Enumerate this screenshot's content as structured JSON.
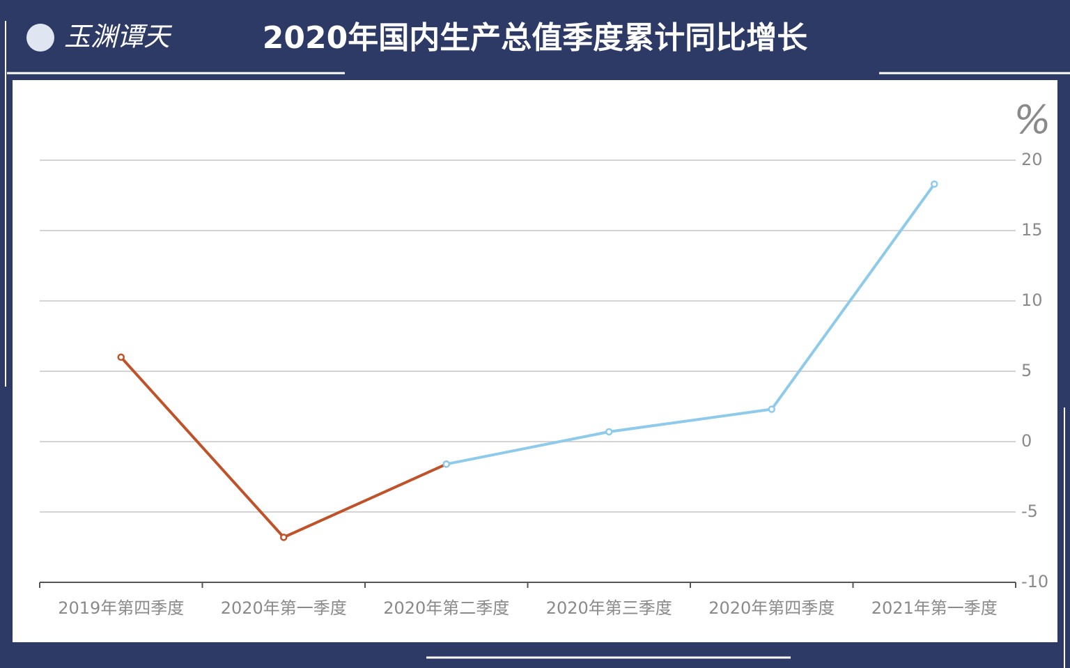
{
  "logo": "玉渊谭天",
  "chart_data": {
    "type": "line",
    "title": "2020年国内生产总值季度累计同比增长",
    "y_label": "%",
    "categories": [
      "2019年第四季度",
      "2020年第一季度",
      "2020年第二季度",
      "2020年第三季度",
      "2020年第四季度",
      "2021年第一季度"
    ],
    "series": [
      {
        "color": "#c0522a",
        "values": [
          6.0,
          -6.8,
          -1.6,
          null,
          null,
          null
        ]
      },
      {
        "color": "#8ecbea",
        "values": [
          null,
          null,
          -1.6,
          0.7,
          2.3,
          18.3
        ]
      }
    ],
    "ylim": [
      -10,
      20
    ],
    "yticks": [
      -10,
      -5,
      0,
      5,
      10,
      15,
      20
    ],
    "grid": true,
    "y_axis_side": "right"
  }
}
